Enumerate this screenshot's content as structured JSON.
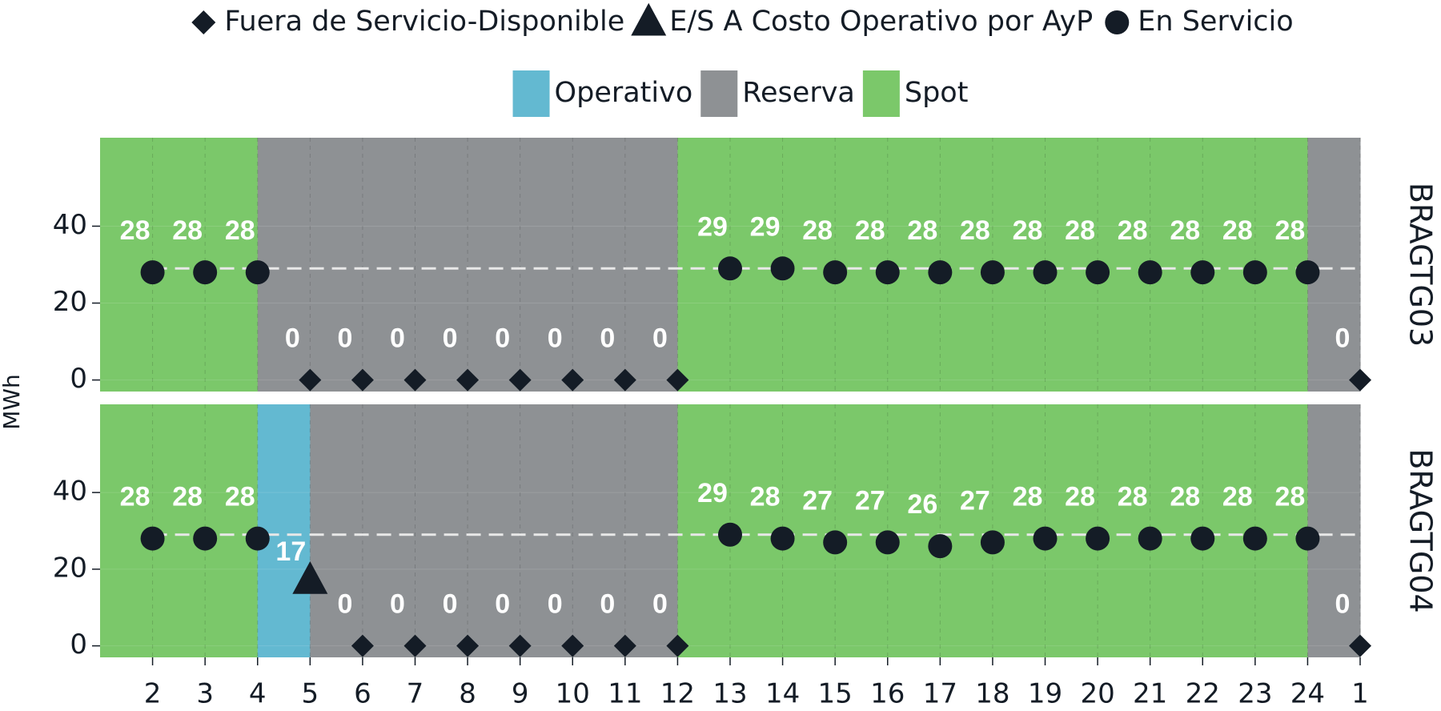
{
  "chart_data": {
    "type": "scatter",
    "y_label": "MWh",
    "categories": [
      "2",
      "3",
      "4",
      "5",
      "6",
      "7",
      "8",
      "9",
      "10",
      "11",
      "12",
      "13",
      "14",
      "15",
      "16",
      "17",
      "18",
      "19",
      "20",
      "21",
      "22",
      "23",
      "24",
      "1"
    ],
    "status_legend": [
      {
        "name": "Fuera de Servicio-Disponible",
        "shape": "diamond"
      },
      {
        "name": "E/S A Costo Operativo por AyP",
        "shape": "triangle"
      },
      {
        "name": "En Servicio",
        "shape": "circle"
      }
    ],
    "period_legend": [
      {
        "name": "Operativo",
        "color": "#63b9d1"
      },
      {
        "name": "Reserva",
        "color": "#8e9194"
      },
      {
        "name": "Spot",
        "color": "#7bc86a"
      }
    ],
    "marker_color": "#141c26",
    "reference_line": 29,
    "ylim": [
      -3,
      63
    ],
    "yticks": [
      0,
      20,
      40
    ],
    "grid": true,
    "panels": [
      {
        "name": "BRAGTG03",
        "values": [
          28,
          28,
          28,
          0,
          0,
          0,
          0,
          0,
          0,
          0,
          0,
          29,
          29,
          28,
          28,
          28,
          28,
          28,
          28,
          28,
          28,
          28,
          28,
          0
        ],
        "status": [
          2,
          2,
          2,
          0,
          0,
          0,
          0,
          0,
          0,
          0,
          0,
          2,
          2,
          2,
          2,
          2,
          2,
          2,
          2,
          2,
          2,
          2,
          2,
          0
        ],
        "period": [
          2,
          2,
          2,
          1,
          1,
          1,
          1,
          1,
          1,
          1,
          1,
          2,
          2,
          2,
          2,
          2,
          2,
          2,
          2,
          2,
          2,
          2,
          2,
          1
        ]
      },
      {
        "name": "BRAGTG04",
        "values": [
          28,
          28,
          28,
          17,
          0,
          0,
          0,
          0,
          0,
          0,
          0,
          29,
          28,
          27,
          27,
          26,
          27,
          28,
          28,
          28,
          28,
          28,
          28,
          0
        ],
        "status": [
          2,
          2,
          2,
          1,
          0,
          0,
          0,
          0,
          0,
          0,
          0,
          2,
          2,
          2,
          2,
          2,
          2,
          2,
          2,
          2,
          2,
          2,
          2,
          0
        ],
        "period": [
          2,
          2,
          2,
          0,
          1,
          1,
          1,
          1,
          1,
          1,
          1,
          2,
          2,
          2,
          2,
          2,
          2,
          2,
          2,
          2,
          2,
          2,
          2,
          1
        ]
      }
    ]
  }
}
